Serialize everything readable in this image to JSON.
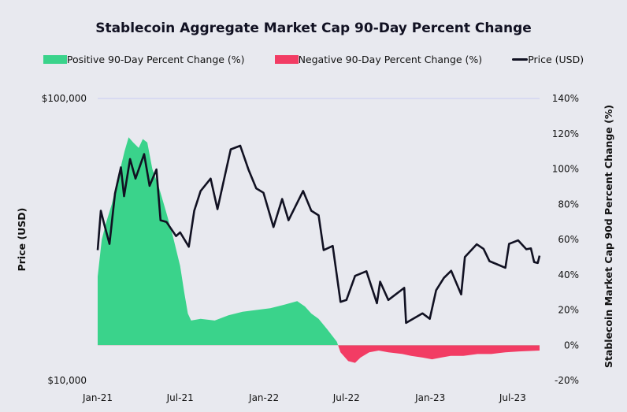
{
  "chart_data": {
    "type": "area+line",
    "title": "Stablecoin Aggregate Market Cap 90-Day Percent Change",
    "legend": {
      "placement": "top",
      "items": [
        {
          "label": "Positive 90-Day Percent Change (%)",
          "color": "#3ad38b"
        },
        {
          "label": "Negative 90-Day Percent Change (%)",
          "color": "#f23c64"
        },
        {
          "label": "Price (USD)",
          "color": "#111122"
        }
      ]
    },
    "ylabel_left": "Price (USD)",
    "ylabel_right": "Stablecoin Market Cap 90d Percent Change (%)",
    "left_axis": {
      "scale": "log",
      "range": [
        10000,
        100000
      ],
      "tick_labels": [
        "$100,000",
        "$10,000"
      ],
      "tick_values": [
        100000,
        10000
      ]
    },
    "right_axis": {
      "range": [
        -20,
        140
      ],
      "tick_values": [
        140,
        120,
        100,
        80,
        60,
        40,
        20,
        0,
        -20
      ],
      "tick_labels": [
        "140%",
        "120%",
        "100%",
        "80%",
        "60%",
        "40%",
        "20%",
        "0%",
        "-20%"
      ]
    },
    "x_axis": {
      "range": [
        "2021-01-01",
        "2023-08-29"
      ],
      "tick_values": [
        "2021-01-01",
        "2021-07-01",
        "2022-01-01",
        "2022-07-01",
        "2023-01-01",
        "2023-07-01"
      ],
      "tick_labels": [
        "Jan-21",
        "Jul-21",
        "Jan-22",
        "Jul-22",
        "Jan-23",
        "Jul-23"
      ]
    },
    "grid": "top line only",
    "series": [
      {
        "name": "Price (USD)",
        "axis": "left",
        "type": "line",
        "x": [
          "2021-01-01",
          "2021-01-08",
          "2021-01-15",
          "2021-01-27",
          "2021-02-08",
          "2021-02-21",
          "2021-02-28",
          "2021-03-13",
          "2021-03-25",
          "2021-04-13",
          "2021-04-25",
          "2021-05-10",
          "2021-05-19",
          "2021-06-01",
          "2021-06-22",
          "2021-07-01",
          "2021-07-20",
          "2021-08-01",
          "2021-08-15",
          "2021-09-06",
          "2021-09-21",
          "2021-10-01",
          "2021-10-20",
          "2021-11-10",
          "2021-11-28",
          "2021-12-15",
          "2021-12-31",
          "2022-01-22",
          "2022-02-10",
          "2022-02-24",
          "2022-03-28",
          "2022-04-15",
          "2022-05-01",
          "2022-05-12",
          "2022-06-01",
          "2022-06-18",
          "2022-07-01",
          "2022-07-20",
          "2022-08-14",
          "2022-09-06",
          "2022-09-13",
          "2022-10-01",
          "2022-11-05",
          "2022-11-09",
          "2022-12-15",
          "2022-12-31",
          "2023-01-14",
          "2023-01-31",
          "2023-02-16",
          "2023-03-10",
          "2023-03-18",
          "2023-04-13",
          "2023-04-28",
          "2023-05-11",
          "2023-06-15",
          "2023-06-23",
          "2023-07-13",
          "2023-07-31",
          "2023-08-10",
          "2023-08-17",
          "2023-08-25",
          "2023-08-29"
        ],
        "values": [
          29000,
          40000,
          36000,
          30500,
          46000,
          57000,
          45000,
          61000,
          52000,
          63500,
          49000,
          56000,
          37000,
          36500,
          32500,
          33500,
          29800,
          40000,
          47000,
          52000,
          40500,
          48000,
          66000,
          68000,
          56000,
          48000,
          46300,
          35000,
          44000,
          37000,
          47000,
          40000,
          38500,
          29000,
          30000,
          19000,
          19300,
          23500,
          24400,
          18800,
          22400,
          19300,
          21300,
          16000,
          17300,
          16550,
          20900,
          23100,
          24500,
          20200,
          27400,
          30400,
          29300,
          26500,
          25100,
          30500,
          31400,
          29200,
          29400,
          26300,
          26100,
          27700
        ]
      },
      {
        "name": "90-Day Percent Change (%)",
        "axis": "right",
        "type": "area",
        "x": [
          "2021-01-01",
          "2021-01-10",
          "2021-01-20",
          "2021-02-01",
          "2021-02-15",
          "2021-03-01",
          "2021-03-10",
          "2021-03-20",
          "2021-04-01",
          "2021-04-10",
          "2021-04-20",
          "2021-05-01",
          "2021-05-15",
          "2021-06-01",
          "2021-06-15",
          "2021-07-01",
          "2021-07-10",
          "2021-07-18",
          "2021-07-25",
          "2021-08-15",
          "2021-09-15",
          "2021-10-15",
          "2021-11-15",
          "2021-12-15",
          "2022-01-15",
          "2022-02-15",
          "2022-03-15",
          "2022-04-01",
          "2022-04-15",
          "2022-05-01",
          "2022-05-20",
          "2022-06-10",
          "2022-06-18",
          "2022-07-05",
          "2022-07-20",
          "2022-08-01",
          "2022-08-20",
          "2022-09-10",
          "2022-10-01",
          "2022-11-01",
          "2022-11-20",
          "2022-12-15",
          "2023-01-05",
          "2023-01-25",
          "2023-02-15",
          "2023-03-15",
          "2023-04-15",
          "2023-05-15",
          "2023-06-15",
          "2023-07-15",
          "2023-08-29"
        ],
        "values": [
          39,
          60,
          70,
          80,
          95,
          110,
          118,
          115,
          112,
          117,
          115,
          100,
          90,
          75,
          62,
          45,
          30,
          18,
          14,
          15,
          14,
          17,
          19,
          20,
          21,
          23,
          25,
          22,
          18,
          15,
          9,
          2,
          -4,
          -9,
          -10,
          -7,
          -4,
          -3,
          -4,
          -5,
          -6,
          -7,
          -8,
          -7,
          -6,
          -6,
          -5,
          -5,
          -4,
          -3.5,
          -3
        ]
      }
    ]
  }
}
